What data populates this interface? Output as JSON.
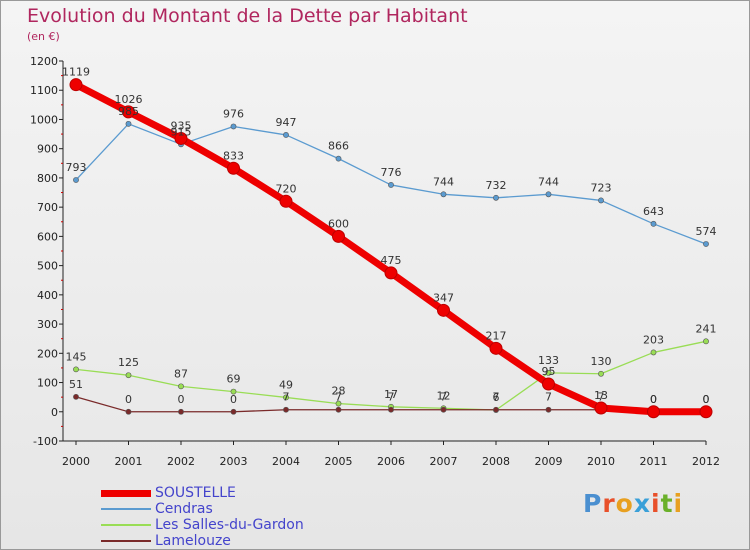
{
  "title": "Evolution du Montant de la Dette par Habitant",
  "unit_label": "(en €)",
  "brand": {
    "text": "Proxiti",
    "letter_colors": [
      "#4a8fd0",
      "#e8502a",
      "#e8a020",
      "#3aa0d8",
      "#e8502a",
      "#6ab02a",
      "#e8a020"
    ]
  },
  "chart_data": {
    "type": "line",
    "title": "Evolution du Montant de la Dette par Habitant",
    "ylabel": "(en €)",
    "xlabel": "",
    "x": [
      "2000",
      "2001",
      "2002",
      "2003",
      "2004",
      "2005",
      "2006",
      "2007",
      "2008",
      "2009",
      "2010",
      "2011",
      "2012"
    ],
    "ylim": [
      -100,
      1200
    ],
    "y_ticks": [
      "-100",
      "0",
      "100",
      "200",
      "300",
      "400",
      "500",
      "600",
      "700",
      "800",
      "900",
      "1000",
      "1100",
      "1200"
    ],
    "grid": false,
    "legend_position": "bottom-left",
    "series": [
      {
        "name": "SOUSTELLE",
        "color": "#ee0000",
        "values": [
          1119,
          1026,
          935,
          833,
          720,
          600,
          475,
          347,
          217,
          95,
          13,
          0,
          0
        ],
        "labels": [
          "1119",
          "1026",
          "935",
          "833",
          "720",
          "600",
          "475",
          "347",
          "217",
          "95",
          "13",
          "0",
          "0"
        ]
      },
      {
        "name": "Cendras",
        "color": "#5b9bd0",
        "values": [
          793,
          985,
          915,
          976,
          947,
          866,
          776,
          744,
          732,
          744,
          723,
          643,
          574
        ],
        "labels": [
          "793",
          "985",
          "915",
          "976",
          "947",
          "866",
          "776",
          "744",
          "732",
          "744",
          "723",
          "643",
          "574"
        ]
      },
      {
        "name": "Les Salles-du-Gardon",
        "color": "#99dd55",
        "values": [
          145,
          125,
          87,
          69,
          49,
          28,
          17,
          12,
          6,
          133,
          130,
          203,
          241
        ],
        "labels": [
          "145",
          "125",
          "87",
          "69",
          "49",
          "28",
          "17",
          "12",
          "6",
          "133",
          "130",
          "203",
          "241"
        ]
      },
      {
        "name": "Lamelouze",
        "color": "#7a2a2a",
        "values": [
          51,
          0,
          0,
          0,
          7,
          7,
          7,
          7,
          7,
          7,
          7,
          0,
          0
        ],
        "labels": [
          "51",
          "0",
          "0",
          "0",
          "7",
          "7",
          "7",
          "7",
          "7",
          "7",
          "7",
          "0",
          "0"
        ]
      }
    ]
  }
}
